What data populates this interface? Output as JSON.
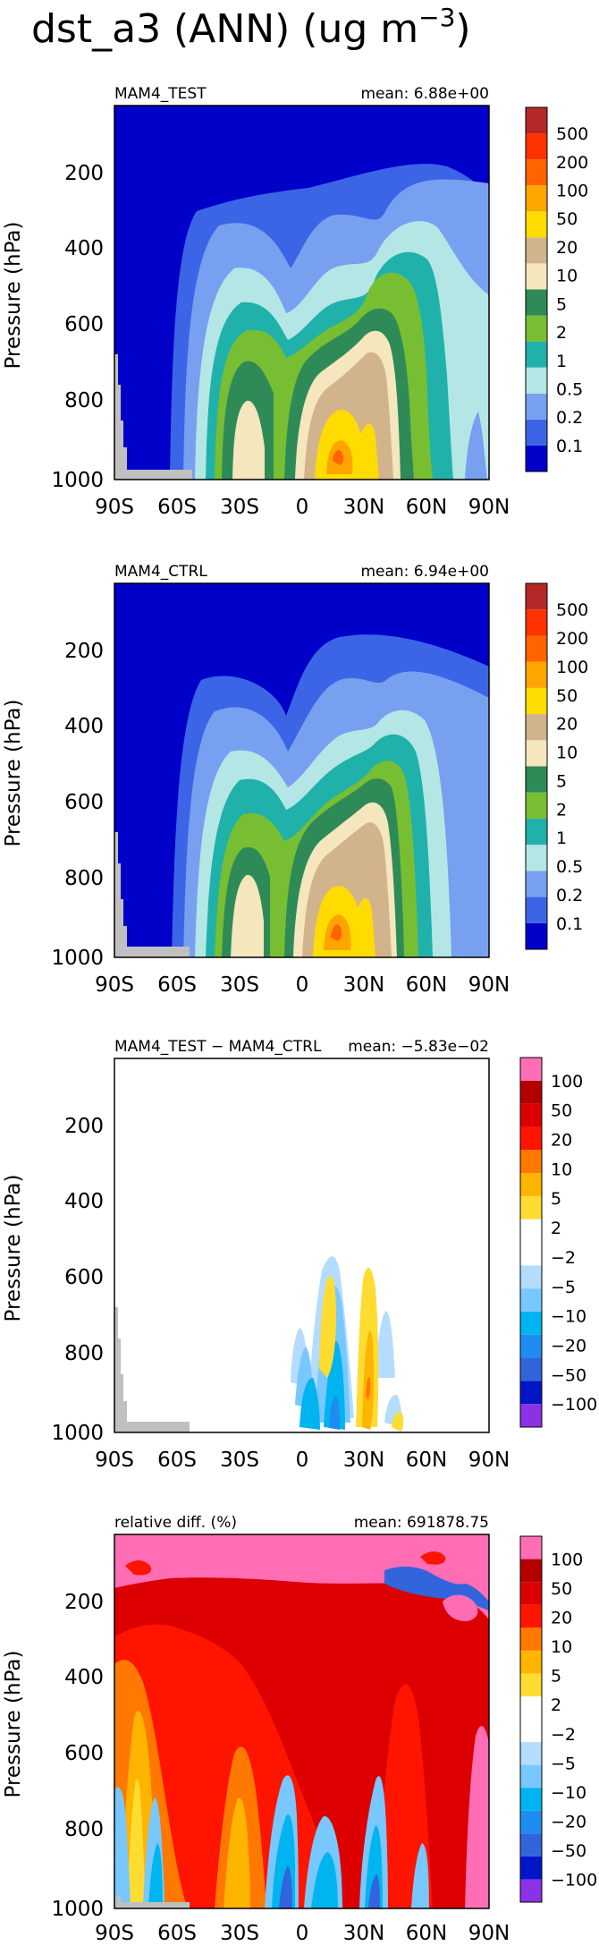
{
  "figure_title": "dst_a3 (ANN) (ug m",
  "figure_title_exp": "−3",
  "figure_title_close": ")",
  "axes": {
    "ylabel": "Pressure (hPa)",
    "xticks": [
      "90S",
      "60S",
      "30S",
      "0",
      "30N",
      "60N",
      "90N"
    ],
    "yticks": [
      "200",
      "400",
      "600",
      "800",
      "1000"
    ]
  },
  "colors": {
    "abs_palette": [
      "#0000c8",
      "#3c64e6",
      "#78a0f0",
      "#b4e6e6",
      "#20b2aa",
      "#78be32",
      "#2e8b57",
      "#f5e6be",
      "#d2b48c",
      "#ffdc00",
      "#ffa500",
      "#ff6400",
      "#ff3200",
      "#b42828"
    ],
    "diff_palette": [
      "#8c32e6",
      "#0014c8",
      "#3264dc",
      "#1e8cf0",
      "#00b4f0",
      "#78c8ff",
      "#b4dcff",
      "#ffffff",
      "#ffffff",
      "#ffdc32",
      "#ffb400",
      "#ff7800",
      "#ff1400",
      "#dc0000",
      "#b40000",
      "#ff6eb4"
    ],
    "land_gray": "#c0c0c0"
  },
  "chart_data": [
    {
      "type": "contour",
      "title": "MAM4_TEST",
      "mean_label": "mean: 6.88e+00",
      "x_range": [
        "90S",
        "90N"
      ],
      "y_range_hpa": [
        1000,
        0
      ],
      "colorbar_labels": [
        "500",
        "200",
        "100",
        "50",
        "20",
        "10",
        "5",
        "2",
        "1",
        "0.5",
        "0.2",
        "0.1"
      ]
    },
    {
      "type": "contour",
      "title": "MAM4_CTRL",
      "mean_label": "mean: 6.94e+00",
      "x_range": [
        "90S",
        "90N"
      ],
      "y_range_hpa": [
        1000,
        0
      ],
      "colorbar_labels": [
        "500",
        "200",
        "100",
        "50",
        "20",
        "10",
        "5",
        "2",
        "1",
        "0.5",
        "0.2",
        "0.1"
      ]
    },
    {
      "type": "contour",
      "title": "MAM4_TEST − MAM4_CTRL",
      "mean_label": "mean: −5.83e−02",
      "x_range": [
        "90S",
        "90N"
      ],
      "y_range_hpa": [
        1000,
        0
      ],
      "colorbar_labels": [
        "100",
        "50",
        "20",
        "10",
        "5",
        "2",
        "−2",
        "−5",
        "−10",
        "−20",
        "−50",
        "−100"
      ]
    },
    {
      "type": "contour",
      "title": "relative diff. (%)",
      "mean_label": "mean: 691878.75",
      "x_range": [
        "90S",
        "90N"
      ],
      "y_range_hpa": [
        1000,
        0
      ],
      "colorbar_labels": [
        "100",
        "50",
        "20",
        "10",
        "5",
        "2",
        "−2",
        "−5",
        "−10",
        "−20",
        "−50",
        "−100"
      ]
    }
  ]
}
